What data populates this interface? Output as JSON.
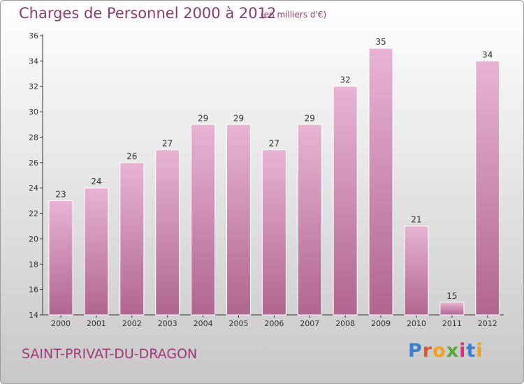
{
  "header": {
    "title": "Charges de Personnel 2000 à 2012",
    "subtitle": "(en milliers d'€)"
  },
  "footer": {
    "commune": "SAINT-PRIVAT-DU-DRAGON",
    "logo_letters": [
      "P",
      "r",
      "o",
      "x",
      "i",
      "t",
      "i"
    ]
  },
  "colors": {
    "bar_top": "#e8b4d4",
    "bar_bottom": "#b0668f",
    "text": "#8a3c6e",
    "axis": "#333333"
  },
  "chart_data": {
    "type": "bar",
    "title": "Charges de Personnel 2000 à 2012",
    "subtitle": "(en milliers d'€)",
    "categories": [
      "2000",
      "2001",
      "2002",
      "2003",
      "2004",
      "2005",
      "2006",
      "2007",
      "2008",
      "2009",
      "2010",
      "2011",
      "2012"
    ],
    "values": [
      23,
      24,
      26,
      27,
      29,
      29,
      27,
      29,
      32,
      35,
      21,
      15,
      34
    ],
    "yticks": [
      14,
      16,
      18,
      20,
      22,
      24,
      26,
      28,
      30,
      32,
      34,
      36
    ],
    "ylim": [
      14,
      36
    ],
    "grid": false,
    "legend": "none"
  }
}
